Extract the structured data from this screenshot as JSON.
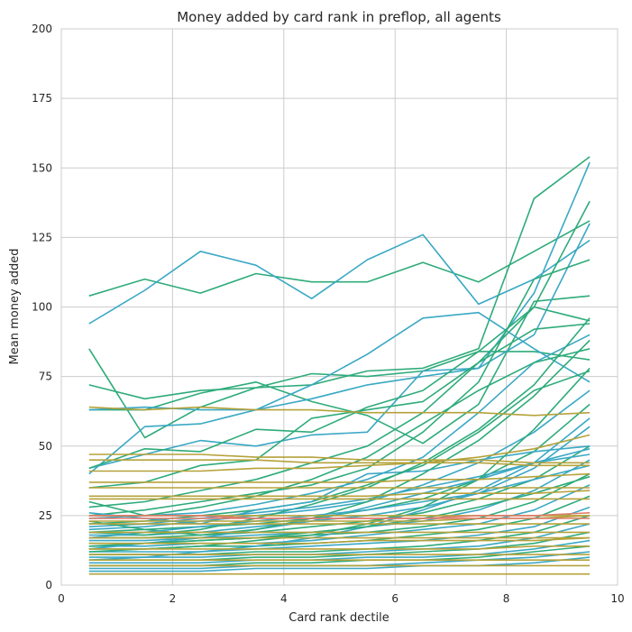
{
  "chart_data": {
    "type": "line",
    "title": "Money added by card rank in preflop, all agents",
    "xlabel": "Card rank dectile",
    "ylabel": "Mean money added",
    "xlim": [
      0,
      10
    ],
    "ylim": [
      0,
      200
    ],
    "xticks": [
      0,
      2,
      4,
      6,
      8,
      10
    ],
    "yticks": [
      0,
      25,
      50,
      75,
      100,
      125,
      150,
      175,
      200
    ],
    "grid": true,
    "legend": "none",
    "x": [
      0.5,
      1.5,
      2.5,
      3.5,
      4.5,
      5.5,
      6.5,
      7.5,
      8.5,
      9.5
    ],
    "series": [
      {
        "color": "#2eab7a",
        "values": [
          104,
          110,
          105,
          112,
          109,
          109,
          116,
          109,
          120,
          131
        ]
      },
      {
        "color": "#3aa8c4",
        "values": [
          94,
          106,
          120,
          115,
          103,
          117,
          126,
          101,
          110,
          124
        ]
      },
      {
        "color": "#2eab7a",
        "values": [
          85,
          53,
          64,
          71,
          72,
          77,
          78,
          85,
          139,
          154
        ]
      },
      {
        "color": "#2eab7a",
        "values": [
          72,
          67,
          70,
          71,
          76,
          75,
          77,
          84,
          84,
          81
        ]
      },
      {
        "color": "#2eab7a",
        "values": [
          63,
          63,
          69,
          73,
          66,
          61,
          51,
          65,
          102,
          104
        ]
      },
      {
        "color": "#3aa8c4",
        "values": [
          63,
          64,
          63,
          63,
          72,
          83,
          96,
          98,
          85,
          73
        ]
      },
      {
        "color": "#3aa8c4",
        "values": [
          40,
          57,
          58,
          63,
          67,
          72,
          75,
          78,
          105,
          152
        ]
      },
      {
        "color": "#3aa8c4",
        "values": [
          42,
          47,
          52,
          50,
          54,
          55,
          77,
          78,
          90,
          130
        ]
      },
      {
        "color": "#2eab7a",
        "values": [
          42,
          49,
          48,
          56,
          55,
          64,
          70,
          84,
          100,
          95
        ]
      },
      {
        "color": "#2eab7a",
        "values": [
          35,
          37,
          43,
          45,
          60,
          63,
          66,
          80,
          92,
          94
        ]
      },
      {
        "color": "#2eab7a",
        "values": [
          28,
          30,
          34,
          38,
          44,
          50,
          62,
          80,
          100,
          138
        ]
      },
      {
        "color": "#2eab7a",
        "values": [
          25,
          27,
          30,
          33,
          36,
          42,
          55,
          73,
          110,
          117
        ]
      },
      {
        "color": "#3aa8c4",
        "values": [
          24,
          25,
          26,
          29,
          33,
          38,
          46,
          62,
          80,
          90
        ]
      },
      {
        "color": "#2eab7a",
        "values": [
          22,
          23,
          25,
          27,
          30,
          36,
          43,
          55,
          70,
          77
        ]
      },
      {
        "color": "#3aa8c4",
        "values": [
          20,
          21,
          23,
          25,
          27,
          30,
          36,
          44,
          55,
          70
        ]
      },
      {
        "color": "#2eab7a",
        "values": [
          19,
          20,
          21,
          22,
          24,
          27,
          31,
          38,
          48,
          65
        ]
      },
      {
        "color": "#3aa8c4",
        "values": [
          18,
          18,
          19,
          21,
          23,
          25,
          28,
          33,
          42,
          57
        ]
      },
      {
        "color": "#2eab7a",
        "values": [
          17,
          17,
          18,
          19,
          21,
          23,
          26,
          31,
          38,
          50
        ]
      },
      {
        "color": "#3aa8c4",
        "values": [
          16,
          16,
          17,
          18,
          19,
          21,
          23,
          27,
          34,
          45
        ]
      },
      {
        "color": "#2eab7a",
        "values": [
          15,
          15,
          16,
          17,
          18,
          19,
          21,
          24,
          30,
          40
        ]
      },
      {
        "color": "#3aa8c4",
        "values": [
          14,
          14,
          15,
          15,
          16,
          18,
          20,
          22,
          27,
          36
        ]
      },
      {
        "color": "#2eab7a",
        "values": [
          13,
          13,
          14,
          14,
          15,
          16,
          18,
          20,
          24,
          32
        ]
      },
      {
        "color": "#3aa8c4",
        "values": [
          12,
          12,
          12,
          13,
          14,
          15,
          16,
          18,
          21,
          28
        ]
      },
      {
        "color": "#2eab7a",
        "values": [
          11,
          11,
          11,
          12,
          12,
          13,
          14,
          16,
          19,
          25
        ]
      },
      {
        "color": "#3aa8c4",
        "values": [
          10,
          10,
          10,
          11,
          11,
          12,
          13,
          14,
          17,
          22
        ]
      },
      {
        "color": "#2eab7a",
        "values": [
          9,
          9,
          9,
          10,
          10,
          11,
          12,
          13,
          15,
          19
        ]
      },
      {
        "color": "#3aa8c4",
        "values": [
          8,
          8,
          8,
          9,
          9,
          10,
          10,
          11,
          13,
          16
        ]
      },
      {
        "color": "#2eab7a",
        "values": [
          7,
          7,
          7,
          8,
          8,
          9,
          9,
          10,
          12,
          14
        ]
      },
      {
        "color": "#3aa8c4",
        "values": [
          6,
          6,
          6,
          7,
          7,
          7,
          8,
          9,
          10,
          12
        ]
      },
      {
        "color": "#3aa8c4",
        "values": [
          5,
          5,
          5,
          6,
          6,
          6,
          7,
          7,
          8,
          10
        ]
      },
      {
        "color": "#3aa8c4",
        "values": [
          26,
          24,
          22,
          27,
          30,
          40,
          41,
          45,
          48,
          50
        ]
      },
      {
        "color": "#2eab7a",
        "values": [
          30,
          25,
          28,
          32,
          38,
          46,
          58,
          70,
          80,
          85
        ]
      },
      {
        "color": "#3aa8c4",
        "values": [
          13,
          15,
          17,
          20,
          23,
          28,
          33,
          38,
          44,
          49
        ]
      },
      {
        "color": "#2eab7a",
        "values": [
          19,
          18,
          20,
          24,
          29,
          35,
          44,
          56,
          72,
          96
        ]
      },
      {
        "color": "#3aa8c4",
        "values": [
          21,
          22,
          24,
          26,
          28,
          31,
          35,
          39,
          44,
          47
        ]
      },
      {
        "color": "#2eab7a",
        "values": [
          12,
          13,
          14,
          16,
          18,
          22,
          28,
          38,
          56,
          78
        ]
      },
      {
        "color": "#3aa8c4",
        "values": [
          9,
          10,
          12,
          14,
          17,
          21,
          27,
          34,
          44,
          60
        ]
      },
      {
        "color": "#2eab7a",
        "values": [
          23,
          20,
          18,
          20,
          24,
          30,
          40,
          52,
          68,
          88
        ]
      },
      {
        "color": "#3aa8c4",
        "values": [
          17,
          19,
          21,
          23,
          25,
          27,
          30,
          33,
          38,
          43
        ]
      },
      {
        "color": "#2eab7a",
        "values": [
          14,
          15,
          16,
          17,
          19,
          21,
          24,
          28,
          33,
          39
        ]
      },
      {
        "color": "#b5a23a",
        "values": [
          64,
          63,
          64,
          63,
          63,
          62,
          62,
          62,
          61,
          62
        ]
      },
      {
        "color": "#b5a23a",
        "values": [
          47,
          47,
          47,
          46,
          46,
          45,
          45,
          45,
          44,
          44
        ]
      },
      {
        "color": "#b5a23a",
        "values": [
          45,
          45,
          45,
          45,
          44,
          44,
          44,
          44,
          43,
          43
        ]
      },
      {
        "color": "#b5a23a",
        "values": [
          41,
          41,
          41,
          42,
          42,
          43,
          44,
          46,
          49,
          54
        ]
      },
      {
        "color": "#b5a23a",
        "values": [
          37,
          37,
          37,
          37,
          37,
          37,
          38,
          38,
          39,
          40
        ]
      },
      {
        "color": "#b5a23a",
        "values": [
          35,
          35,
          35,
          35,
          35,
          35,
          35,
          35,
          35,
          35
        ]
      },
      {
        "color": "#b5a23a",
        "values": [
          32,
          32,
          32,
          32,
          32,
          32,
          33,
          33,
          33,
          34
        ]
      },
      {
        "color": "#b5a23a",
        "values": [
          31,
          31,
          31,
          31,
          31,
          31,
          31,
          31,
          31,
          31
        ]
      },
      {
        "color": "#b5a23a",
        "values": [
          25,
          25,
          25,
          25,
          25,
          25,
          25,
          25,
          25,
          25
        ]
      },
      {
        "color": "#b5a23a",
        "values": [
          23,
          23,
          23,
          23,
          23,
          23,
          23,
          24,
          24,
          25
        ]
      },
      {
        "color": "#b5a23a",
        "values": [
          22,
          22,
          22,
          22,
          22,
          22,
          22,
          22,
          22,
          22
        ]
      },
      {
        "color": "#b5a23a",
        "values": [
          19,
          19,
          19,
          19,
          19,
          19,
          19,
          19,
          19,
          19
        ]
      },
      {
        "color": "#b5a23a",
        "values": [
          17,
          17,
          17,
          17,
          17,
          17,
          17,
          17,
          17,
          17
        ]
      },
      {
        "color": "#b5a23a",
        "values": [
          15,
          15,
          15,
          15,
          15,
          16,
          16,
          16,
          16,
          17
        ]
      },
      {
        "color": "#b5a23a",
        "values": [
          13,
          13,
          13,
          13,
          13,
          13,
          13,
          13,
          14,
          14
        ]
      },
      {
        "color": "#b5a23a",
        "values": [
          11,
          11,
          11,
          11,
          11,
          11,
          11,
          11,
          11,
          11
        ]
      },
      {
        "color": "#b5a23a",
        "values": [
          9,
          9,
          9,
          9,
          9,
          9,
          9,
          9,
          9,
          9
        ]
      },
      {
        "color": "#b5a23a",
        "values": [
          7,
          7,
          7,
          7,
          7,
          7,
          7,
          7,
          7,
          7
        ]
      },
      {
        "color": "#b5a23a",
        "values": [
          4,
          4,
          4,
          4,
          4,
          4,
          4,
          4,
          4,
          4
        ]
      },
      {
        "color": "#e07a6a",
        "values": [
          25,
          25,
          25,
          24,
          24,
          24,
          24,
          25,
          25,
          26
        ]
      },
      {
        "color": "#e07a6a",
        "values": [
          24,
          24,
          24,
          24,
          24,
          24,
          24,
          24,
          24,
          24
        ]
      }
    ]
  }
}
